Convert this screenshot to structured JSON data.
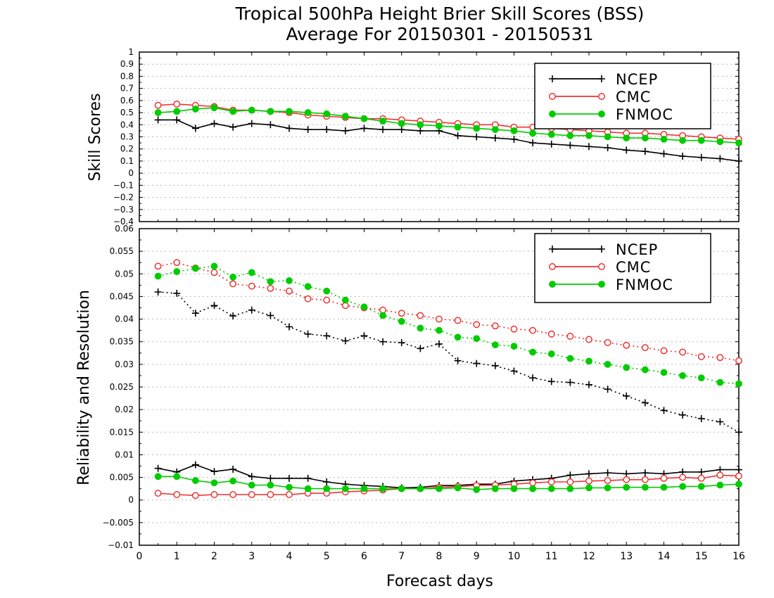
{
  "title": {
    "line1": "Tropical 500hPa Height Brier Skill Scores (BSS)",
    "line2": "Average For 20150301 - 20150531"
  },
  "xaxis": {
    "label": "Forecast days",
    "ticks": [
      "0",
      "1",
      "2",
      "3",
      "4",
      "5",
      "6",
      "7",
      "8",
      "9",
      "10",
      "11",
      "12",
      "13",
      "14",
      "15",
      "16"
    ]
  },
  "colors": {
    "NCEP": "#000000",
    "CMC": "#ee3333",
    "FNMOC": "#00cc00"
  },
  "chart_data": [
    {
      "type": "line",
      "ylabel": "Skill Scores",
      "xlim": [
        0,
        16
      ],
      "ylim": [
        -0.4,
        1
      ],
      "ytick_labels": [
        "1",
        "0.9",
        "0.8",
        "0.7",
        "0.6",
        "0.5",
        "0.4",
        "0.3",
        "0.2",
        "0.1",
        "0",
        "−0.1",
        "−0.2",
        "−0.3",
        "−0.4"
      ],
      "grid": true,
      "legend": {
        "placement": "top-right",
        "entries": [
          "NCEP",
          "CMC",
          "FNMOC"
        ]
      },
      "x": [
        0.5,
        1,
        1.5,
        2,
        2.5,
        3,
        3.5,
        4,
        4.5,
        5,
        5.5,
        6,
        6.5,
        7,
        7.5,
        8,
        8.5,
        9,
        9.5,
        10,
        10.5,
        11,
        11.5,
        12,
        12.5,
        13,
        13.5,
        14,
        14.5,
        15,
        15.5,
        16
      ],
      "series": [
        {
          "name": "NCEP",
          "style": "solid",
          "marker": "plus",
          "values": [
            0.44,
            0.44,
            0.37,
            0.41,
            0.38,
            0.41,
            0.4,
            0.37,
            0.36,
            0.36,
            0.35,
            0.37,
            0.36,
            0.36,
            0.35,
            0.35,
            0.31,
            0.3,
            0.29,
            0.28,
            0.25,
            0.24,
            0.23,
            0.22,
            0.21,
            0.19,
            0.18,
            0.16,
            0.14,
            0.13,
            0.12,
            0.1
          ]
        },
        {
          "name": "CMC",
          "style": "solid",
          "marker": "open-circle",
          "values": [
            0.56,
            0.57,
            0.56,
            0.55,
            0.52,
            0.52,
            0.51,
            0.5,
            0.48,
            0.47,
            0.46,
            0.45,
            0.45,
            0.44,
            0.43,
            0.42,
            0.41,
            0.4,
            0.4,
            0.38,
            0.38,
            0.37,
            0.36,
            0.35,
            0.34,
            0.33,
            0.33,
            0.32,
            0.31,
            0.3,
            0.29,
            0.28
          ]
        },
        {
          "name": "FNMOC",
          "style": "solid",
          "marker": "filled-circle",
          "values": [
            0.5,
            0.51,
            0.53,
            0.54,
            0.51,
            0.52,
            0.51,
            0.51,
            0.5,
            0.49,
            0.47,
            0.45,
            0.43,
            0.41,
            0.4,
            0.39,
            0.38,
            0.37,
            0.36,
            0.35,
            0.33,
            0.32,
            0.31,
            0.31,
            0.3,
            0.29,
            0.29,
            0.28,
            0.27,
            0.27,
            0.26,
            0.25
          ]
        }
      ]
    },
    {
      "type": "line",
      "ylabel": "Reliability and Resolution",
      "xlim": [
        0,
        16
      ],
      "ylim": [
        -0.01,
        0.06
      ],
      "ytick_labels": [
        "0.06",
        "0.055",
        "0.05",
        "0.045",
        "0.04",
        "0.035",
        "0.03",
        "0.025",
        "0.02",
        "0.015",
        "0.01",
        "0.005",
        "0",
        "−0.005",
        "−0.01"
      ],
      "grid": true,
      "legend": {
        "placement": "top-right",
        "entries": [
          "NCEP",
          "CMC",
          "FNMOC"
        ]
      },
      "x": [
        0.5,
        1,
        1.5,
        2,
        2.5,
        3,
        3.5,
        4,
        4.5,
        5,
        5.5,
        6,
        6.5,
        7,
        7.5,
        8,
        8.5,
        9,
        9.5,
        10,
        10.5,
        11,
        11.5,
        12,
        12.5,
        13,
        13.5,
        14,
        14.5,
        15,
        15.5,
        16
      ],
      "series": [
        {
          "name": "NCEP",
          "style": "dotted",
          "marker": "plus",
          "values": [
            0.046,
            0.0457,
            0.0413,
            0.043,
            0.0407,
            0.042,
            0.0408,
            0.0383,
            0.0367,
            0.0363,
            0.0352,
            0.0363,
            0.035,
            0.0348,
            0.0335,
            0.0345,
            0.0308,
            0.0302,
            0.0297,
            0.0285,
            0.027,
            0.0262,
            0.026,
            0.0255,
            0.0245,
            0.023,
            0.0215,
            0.0198,
            0.0188,
            0.018,
            0.0173,
            0.015
          ]
        },
        {
          "name": "CMC",
          "style": "dotted",
          "marker": "open-circle",
          "values": [
            0.0517,
            0.0525,
            0.0513,
            0.0503,
            0.0478,
            0.0473,
            0.0468,
            0.0462,
            0.0445,
            0.0442,
            0.043,
            0.0425,
            0.042,
            0.0413,
            0.0408,
            0.04,
            0.0397,
            0.0388,
            0.0385,
            0.0378,
            0.0375,
            0.0367,
            0.0362,
            0.0355,
            0.0348,
            0.0342,
            0.0337,
            0.033,
            0.0327,
            0.0317,
            0.0315,
            0.0308
          ]
        },
        {
          "name": "FNMOC",
          "style": "dotted",
          "marker": "filled-circle",
          "values": [
            0.0495,
            0.0505,
            0.0512,
            0.0517,
            0.0493,
            0.0503,
            0.0483,
            0.0485,
            0.0472,
            0.0462,
            0.0442,
            0.0427,
            0.0408,
            0.0395,
            0.038,
            0.0375,
            0.036,
            0.0357,
            0.0343,
            0.034,
            0.0327,
            0.0323,
            0.0313,
            0.0307,
            0.03,
            0.0293,
            0.0288,
            0.0282,
            0.0275,
            0.027,
            0.026,
            0.0257
          ]
        },
        {
          "name": "NCEP",
          "style": "solid",
          "marker": "plus",
          "values": [
            0.007,
            0.0062,
            0.0078,
            0.0063,
            0.0068,
            0.0052,
            0.0048,
            0.0048,
            0.0048,
            0.004,
            0.0035,
            0.0032,
            0.003,
            0.0027,
            0.0028,
            0.0032,
            0.0032,
            0.0035,
            0.0035,
            0.0042,
            0.0045,
            0.0048,
            0.0055,
            0.0058,
            0.006,
            0.0058,
            0.006,
            0.0058,
            0.0062,
            0.0062,
            0.0067,
            0.0067
          ]
        },
        {
          "name": "CMC",
          "style": "solid",
          "marker": "open-circle",
          "values": [
            0.0015,
            0.0012,
            0.001,
            0.0012,
            0.0012,
            0.0012,
            0.0012,
            0.0012,
            0.0015,
            0.0015,
            0.0018,
            0.002,
            0.0022,
            0.0025,
            0.0025,
            0.0028,
            0.003,
            0.0032,
            0.0033,
            0.0035,
            0.0038,
            0.004,
            0.004,
            0.0042,
            0.0043,
            0.0045,
            0.0045,
            0.0048,
            0.005,
            0.0048,
            0.0055,
            0.0053
          ]
        },
        {
          "name": "FNMOC",
          "style": "solid",
          "marker": "filled-circle",
          "values": [
            0.0052,
            0.0052,
            0.0043,
            0.0038,
            0.0042,
            0.0033,
            0.0033,
            0.0028,
            0.0025,
            0.0025,
            0.0025,
            0.0025,
            0.0025,
            0.0025,
            0.0025,
            0.0025,
            0.0027,
            0.0023,
            0.0025,
            0.0025,
            0.0025,
            0.0025,
            0.0025,
            0.0027,
            0.0027,
            0.0028,
            0.0028,
            0.0028,
            0.003,
            0.003,
            0.0033,
            0.0035
          ]
        }
      ]
    }
  ]
}
